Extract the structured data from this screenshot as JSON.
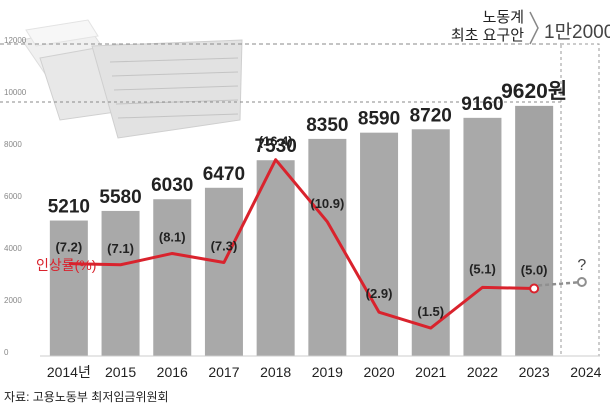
{
  "chart_data": {
    "type": "bar",
    "categories": [
      "2014년",
      "2015",
      "2016",
      "2017",
      "2018",
      "2019",
      "2020",
      "2021",
      "2022",
      "2023",
      "2024"
    ],
    "series": [
      {
        "values": [
          5210,
          5580,
          6030,
          6470,
          7530,
          8350,
          8590,
          8720,
          9160,
          9620,
          null
        ],
        "labels": [
          "5210",
          "5580",
          "6030",
          "6470",
          "7530",
          "8350",
          "8590",
          "8720",
          "9160",
          "9620원",
          ""
        ]
      },
      {
        "name": "인상률(%)",
        "type": "line",
        "values": [
          7.2,
          7.1,
          8.1,
          7.3,
          16.4,
          10.9,
          2.9,
          1.5,
          5.1,
          5.0,
          null
        ],
        "labels": [
          "(7.2)",
          "(7.1)",
          "(8.1)",
          "(7.3)",
          "(16.4)",
          "(10.9)",
          "(2.9)",
          "(1.5)",
          "(5.1)",
          "(5.0)",
          "?"
        ]
      }
    ],
    "yticks": [
      "12000",
      "10000",
      "8000",
      "6000",
      "4000",
      "2000",
      "0"
    ],
    "ylim": [
      0,
      12000
    ],
    "annotations": {
      "demand_label_line1": "노동계",
      "demand_label_line2": "최초 요구안",
      "demand_value": "1만2000",
      "unknown_marker": "?"
    },
    "source": "자료: 고용노동부 최저임금위원회",
    "colors": {
      "bar": "#a9a9a9",
      "bar_last": "#a3a3a3",
      "rate_line": "#d9232d",
      "forecast": "#8f8f8f"
    },
    "grid": false
  }
}
